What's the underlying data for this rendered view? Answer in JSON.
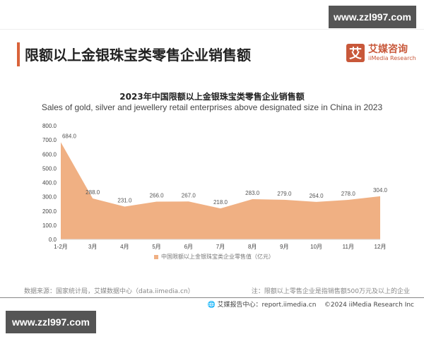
{
  "watermark": {
    "top": "www.zzl997.com",
    "bottom": "www.zzl997.com"
  },
  "header": {
    "title": "限额以上金银珠宝类零售企业销售额",
    "logo": {
      "glyph": "艾",
      "cn": "艾媒咨询",
      "en": "iiMedia Research"
    }
  },
  "colors": {
    "accent": "#d9633a",
    "area": "#f0b083",
    "logo": "#c8583a"
  },
  "footer": {
    "source": "数据来源：国家统计局，艾媒数据中心（data.iimedia.cn）",
    "note": "注：限额以上零售企业是指销售额500万元及以上的企业",
    "report": "艾媒报告中心：report.iimedia.cn",
    "copyright": "©2024  iiMedia Research  Inc"
  },
  "chart_data": {
    "type": "area",
    "title": "2023年中国限额以上金银珠宝类零售企业销售额",
    "subtitle": "Sales of gold, silver and jewellery retail enterprises above designated size in China in 2023",
    "categories": [
      "1-2月",
      "3月",
      "4月",
      "5月",
      "6月",
      "7月",
      "8月",
      "9月",
      "10月",
      "11月",
      "12月"
    ],
    "series": [
      {
        "name": "中国限额以上金银珠宝类企业零售值（亿元）",
        "values": [
          684.0,
          288.0,
          231.0,
          266.0,
          267.0,
          218.0,
          283.0,
          279.0,
          264.0,
          278.0,
          304.0
        ]
      }
    ],
    "value_labels": [
      "684.0",
      "288.0",
      "231.0",
      "266.0",
      "267.0",
      "218.0",
      "283.0",
      "279.0",
      "264.0",
      "278.0",
      "304.0"
    ],
    "yticks": [
      "0.0",
      "100.0",
      "200.0",
      "300.0",
      "400.0",
      "500.0",
      "600.0",
      "700.0",
      "800.0"
    ],
    "ylim": [
      0,
      800
    ],
    "xlabel": "",
    "ylabel": "",
    "grid": false,
    "legend_position": "bottom"
  }
}
